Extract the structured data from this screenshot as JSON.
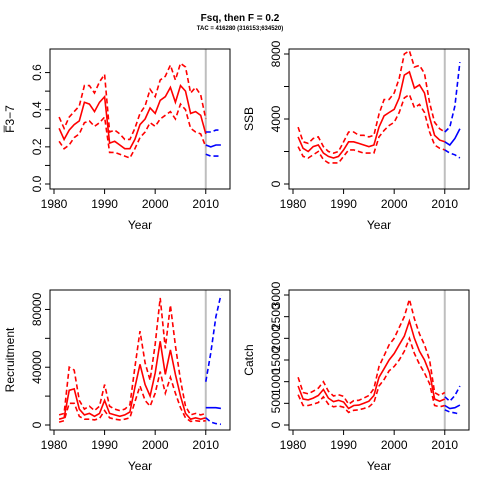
{
  "header": {
    "title": "Fsq, then F = 0.2",
    "subtitle": "TAC = 416280 (316153;634520)"
  },
  "colors": {
    "historical": "#ff0000",
    "projection": "#0000ff",
    "reference_line": "#bebebe",
    "axis": "#000000"
  },
  "chart_data": [
    {
      "id": "fbar",
      "type": "line",
      "ylabel": "F̅3−7",
      "xlabel": "Year",
      "xlim": [
        1980,
        2014
      ],
      "ylim": [
        0,
        0.7
      ],
      "xticks": [
        1980,
        1990,
        2000,
        2010
      ],
      "yticks": [
        0,
        0.1,
        0.2,
        0.3,
        0.4,
        0.5,
        0.6
      ],
      "ytick_labels": [
        "0.0",
        "",
        "0.2",
        "",
        "0.4",
        "",
        "0.6"
      ],
      "vline": 2010,
      "historical": {
        "years": [
          1981,
          1982,
          1983,
          1984,
          1985,
          1986,
          1987,
          1988,
          1989,
          1990,
          1991,
          1992,
          1993,
          1994,
          1995,
          1996,
          1997,
          1998,
          1999,
          2000,
          2001,
          2002,
          2003,
          2004,
          2005,
          2006,
          2007,
          2008,
          2009,
          2010
        ],
        "median": [
          0.3,
          0.24,
          0.29,
          0.32,
          0.34,
          0.44,
          0.43,
          0.39,
          0.44,
          0.47,
          0.22,
          0.23,
          0.21,
          0.19,
          0.19,
          0.24,
          0.32,
          0.35,
          0.41,
          0.38,
          0.45,
          0.47,
          0.52,
          0.44,
          0.53,
          0.5,
          0.38,
          0.39,
          0.37,
          0.27
        ],
        "lower": [
          0.23,
          0.19,
          0.21,
          0.25,
          0.27,
          0.33,
          0.34,
          0.31,
          0.33,
          0.36,
          0.17,
          0.17,
          0.16,
          0.15,
          0.14,
          0.19,
          0.25,
          0.28,
          0.33,
          0.31,
          0.35,
          0.37,
          0.39,
          0.35,
          0.43,
          0.4,
          0.3,
          0.28,
          0.27,
          0.2
        ],
        "upper": [
          0.36,
          0.3,
          0.36,
          0.39,
          0.42,
          0.53,
          0.53,
          0.49,
          0.55,
          0.59,
          0.28,
          0.29,
          0.27,
          0.24,
          0.24,
          0.3,
          0.38,
          0.42,
          0.51,
          0.47,
          0.56,
          0.58,
          0.64,
          0.56,
          0.65,
          0.63,
          0.49,
          0.52,
          0.48,
          0.35
        ]
      },
      "projection": {
        "years": [
          2010,
          2011,
          2012,
          2013
        ],
        "median": [
          0.21,
          0.2,
          0.21,
          0.21
        ],
        "lower": [
          0.16,
          0.15,
          0.15,
          0.15
        ],
        "upper": [
          0.28,
          0.28,
          0.29,
          0.29
        ]
      }
    },
    {
      "id": "ssb",
      "type": "line",
      "ylabel": "SSB",
      "xlabel": "Year",
      "xlim": [
        1980,
        2014
      ],
      "ylim": [
        0,
        8000
      ],
      "xticks": [
        1980,
        1990,
        2000,
        2010
      ],
      "yticks": [
        0,
        2000,
        4000,
        6000,
        8000
      ],
      "ytick_labels": [
        "0",
        "",
        "4000",
        "",
        "8000"
      ],
      "vline": 2010,
      "historical": {
        "years": [
          1981,
          1982,
          1983,
          1984,
          1985,
          1986,
          1987,
          1988,
          1989,
          1990,
          1991,
          1992,
          1993,
          1994,
          1995,
          1996,
          1997,
          1998,
          1999,
          2000,
          2001,
          2002,
          2003,
          2004,
          2005,
          2006,
          2007,
          2008,
          2009,
          2010
        ],
        "median": [
          2900,
          2200,
          2000,
          2300,
          2400,
          1900,
          1700,
          1600,
          1700,
          2100,
          2600,
          2600,
          2500,
          2400,
          2300,
          2400,
          3500,
          4200,
          4400,
          4600,
          5300,
          6700,
          6900,
          5900,
          6100,
          5600,
          4100,
          3000,
          2700,
          2600
        ],
        "lower": [
          2300,
          1700,
          1600,
          1800,
          2000,
          1500,
          1300,
          1300,
          1300,
          1700,
          2100,
          2100,
          2000,
          1900,
          1900,
          1900,
          2900,
          3300,
          3600,
          3800,
          4400,
          5300,
          5500,
          4700,
          4900,
          4400,
          3200,
          2400,
          2200,
          2100
        ],
        "upper": [
          3500,
          2600,
          2500,
          2800,
          2900,
          2300,
          2000,
          1900,
          2000,
          2600,
          3200,
          3200,
          3000,
          3000,
          2900,
          3000,
          4300,
          5200,
          5200,
          5600,
          6500,
          8000,
          8200,
          7200,
          7300,
          6800,
          5000,
          3800,
          3400,
          3200
        ]
      },
      "projection": {
        "years": [
          2010,
          2011,
          2012,
          2013
        ],
        "median": [
          2600,
          2400,
          2800,
          3400
        ],
        "lower": [
          2100,
          1900,
          1800,
          1600
        ],
        "upper": [
          3200,
          3500,
          4800,
          7500
        ]
      }
    },
    {
      "id": "recruitment",
      "type": "line",
      "ylabel": "Recruitment",
      "xlabel": "Year",
      "xlim": [
        1980,
        2014
      ],
      "ylim": [
        0,
        90000
      ],
      "xticks": [
        1980,
        1990,
        2000,
        2010
      ],
      "yticks": [
        0,
        20000,
        40000,
        60000,
        80000
      ],
      "ytick_labels": [
        "0",
        "",
        "40000",
        "",
        "80000"
      ],
      "vline": 2010,
      "historical": {
        "years": [
          1981,
          1982,
          1983,
          1984,
          1985,
          1986,
          1987,
          1988,
          1989,
          1990,
          1991,
          1992,
          1993,
          1994,
          1995,
          1996,
          1997,
          1998,
          1999,
          2000,
          2001,
          2002,
          2003,
          2004,
          2005,
          2006,
          2007,
          2008,
          2009,
          2010
        ],
        "median": [
          4000,
          5000,
          24000,
          25000,
          11000,
          7000,
          8000,
          6000,
          8000,
          17000,
          8000,
          7000,
          6000,
          7000,
          9000,
          26000,
          42000,
          28000,
          20000,
          36000,
          58000,
          35000,
          52000,
          35000,
          20000,
          8000,
          4000,
          5000,
          4000,
          5000
        ],
        "lower": [
          2000,
          3000,
          15000,
          15000,
          6000,
          4000,
          4000,
          3500,
          4500,
          10000,
          5000,
          4000,
          3500,
          4000,
          5000,
          16000,
          27000,
          17000,
          13000,
          22000,
          37000,
          22000,
          33000,
          22000,
          12000,
          5000,
          2500,
          3000,
          2500,
          3000
        ],
        "upper": [
          7000,
          8000,
          40000,
          38000,
          17000,
          11000,
          13000,
          10000,
          13000,
          28000,
          13000,
          11000,
          10000,
          11000,
          14000,
          40000,
          65000,
          43000,
          31000,
          56000,
          88000,
          53000,
          83000,
          55000,
          31000,
          13000,
          7000,
          8000,
          7000,
          8000
        ]
      },
      "projection": {
        "years": [
          2010,
          2011,
          2012,
          2013
        ],
        "median": [
          12000,
          12000,
          12000,
          11500
        ],
        "lower": [
          5000,
          2000,
          1000,
          500
        ],
        "upper": [
          30000,
          50000,
          75000,
          90000
        ]
      }
    },
    {
      "id": "catch",
      "type": "line",
      "ylabel": "Catch",
      "xlabel": "Year",
      "xlim": [
        1980,
        2014
      ],
      "ylim": [
        0,
        3000
      ],
      "xticks": [
        1980,
        1990,
        2000,
        2010
      ],
      "yticks": [
        0,
        500,
        1000,
        1500,
        2000,
        2500,
        3000
      ],
      "ytick_labels": [
        "0",
        "500",
        "1000",
        "1500",
        "2000",
        "2500",
        "3000"
      ],
      "vline": 2010,
      "historical": {
        "years": [
          1981,
          1982,
          1983,
          1984,
          1985,
          1986,
          1987,
          1988,
          1989,
          1990,
          1991,
          1992,
          1993,
          1994,
          1995,
          1996,
          1997,
          1998,
          1999,
          2000,
          2001,
          2002,
          2003,
          2004,
          2005,
          2006,
          2007,
          2008,
          2009,
          2010
        ],
        "median": [
          900,
          600,
          580,
          620,
          680,
          820,
          620,
          540,
          570,
          530,
          380,
          450,
          460,
          500,
          550,
          680,
          1100,
          1300,
          1500,
          1650,
          1850,
          2050,
          2400,
          2000,
          1700,
          1500,
          1200,
          600,
          550,
          600
        ],
        "lower": [
          700,
          450,
          450,
          480,
          520,
          650,
          480,
          420,
          440,
          410,
          290,
          340,
          350,
          380,
          420,
          520,
          900,
          1050,
          1250,
          1350,
          1500,
          1700,
          2000,
          1650,
          1400,
          1200,
          950,
          450,
          420,
          450
        ],
        "upper": [
          1100,
          750,
          720,
          780,
          850,
          1000,
          780,
          670,
          700,
          660,
          480,
          560,
          570,
          620,
          680,
          840,
          1350,
          1600,
          1850,
          2000,
          2250,
          2500,
          2900,
          2450,
          2100,
          1850,
          1500,
          750,
          680,
          750
        ]
      },
      "projection": {
        "years": [
          2010,
          2011,
          2012,
          2013
        ],
        "median": [
          450,
          380,
          400,
          460
        ],
        "lower": [
          350,
          300,
          280,
          250
        ],
        "upper": [
          650,
          550,
          680,
          900
        ]
      }
    }
  ]
}
